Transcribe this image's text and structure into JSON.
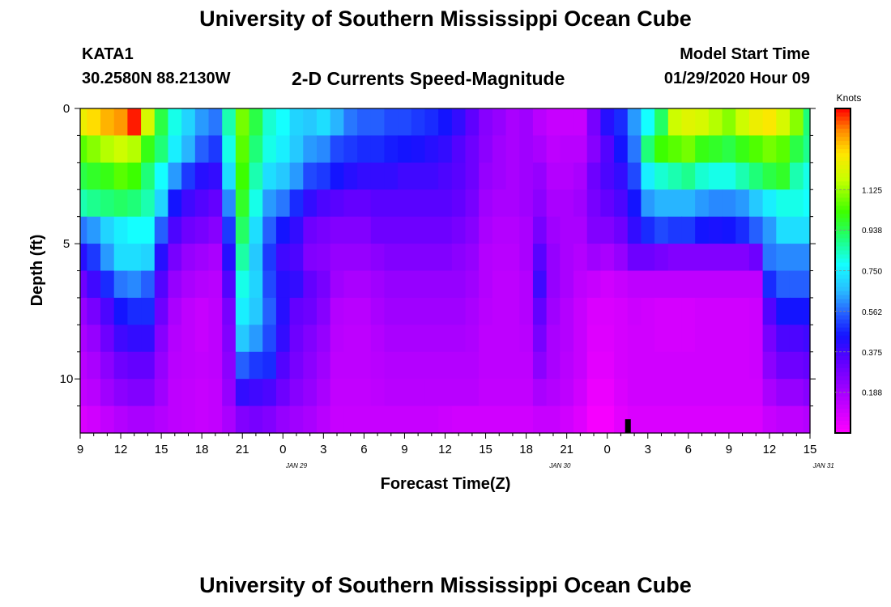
{
  "header": {
    "title": "University of Southern Mississippi Ocean Cube",
    "station": "KATA1",
    "coordinates": "30.2580N 88.2130W",
    "subtitle": "2-D Currents Speed-Magnitude",
    "model_start_label": "Model Start Time",
    "model_start_value": "01/29/2020 Hour 09"
  },
  "footer": {
    "title": "University of Southern Mississippi Ocean Cube"
  },
  "chart_data": {
    "type": "heatmap",
    "title": "2-D Currents Speed-Magnitude",
    "xlabel": "Forecast Time(Z)",
    "ylabel": "Depth (ft)",
    "x_tick_labels": [
      "9",
      "12",
      "15",
      "18",
      "21",
      "0",
      "3",
      "6",
      "9",
      "12",
      "15",
      "18",
      "21",
      "0",
      "3",
      "6",
      "9",
      "12",
      "15"
    ],
    "date_labels": [
      {
        "text": "JAN 29",
        "x_hour": 16
      },
      {
        "text": "JAN 30",
        "x_hour": 35.5
      },
      {
        "text": "JAN 31",
        "x_hour": 55
      }
    ],
    "xlim_hours_since_start": [
      0,
      54
    ],
    "y_tick_labels": [
      "0",
      "5",
      "10"
    ],
    "ylim": [
      0,
      12
    ],
    "y_tick_values": [
      0,
      5,
      10
    ],
    "colorbar": {
      "unit_label": "Knots",
      "tick_labels": [
        "1.125",
        "0.938",
        "0.750",
        "0.562",
        "0.375",
        "0.188"
      ],
      "tick_values": [
        1.125,
        0.938,
        0.75,
        0.562,
        0.375,
        0.188
      ],
      "range": [
        0,
        1.5
      ]
    },
    "current_time_marker_hours": 40.5,
    "grid_depths_ft": [
      0.5,
      1.5,
      2.5,
      3.5,
      4.5,
      5.5,
      6.5,
      7.5,
      8.5,
      9.5,
      10.5,
      11.5
    ],
    "grid_hours": [
      0,
      1,
      2,
      3,
      4,
      5,
      6,
      7,
      8,
      9,
      10,
      11,
      12,
      13,
      14,
      15,
      16,
      17,
      18,
      19,
      20,
      21,
      22,
      23,
      24,
      25,
      26,
      27,
      28,
      29,
      30,
      31,
      32,
      33,
      34,
      35,
      36,
      37,
      38,
      39,
      40,
      41,
      42,
      43,
      44,
      45,
      46,
      47,
      48,
      49,
      50,
      51,
      52,
      53,
      54
    ],
    "values": [
      [
        1.25,
        1.3,
        1.35,
        1.38,
        1.48,
        1.2,
        0.95,
        0.8,
        0.7,
        0.62,
        0.58,
        0.85,
        1.08,
        0.95,
        0.82,
        0.78,
        0.7,
        0.68,
        0.72,
        0.65,
        0.58,
        0.55,
        0.55,
        0.52,
        0.52,
        0.5,
        0.48,
        0.45,
        0.4,
        0.33,
        0.25,
        0.22,
        0.18,
        0.2,
        0.15,
        0.12,
        0.12,
        0.12,
        0.28,
        0.42,
        0.48,
        0.62,
        0.78,
        0.92,
        1.18,
        1.22,
        1.2,
        1.15,
        1.1,
        1.18,
        1.25,
        1.28,
        1.2,
        1.1,
        0.9
      ],
      [
        1.05,
        1.1,
        1.15,
        1.18,
        1.15,
        1.0,
        0.9,
        0.75,
        0.65,
        0.55,
        0.5,
        0.8,
        1.05,
        0.9,
        0.8,
        0.75,
        0.68,
        0.62,
        0.6,
        0.52,
        0.5,
        0.48,
        0.48,
        0.46,
        0.45,
        0.44,
        0.42,
        0.4,
        0.35,
        0.3,
        0.24,
        0.2,
        0.18,
        0.2,
        0.18,
        0.14,
        0.15,
        0.15,
        0.25,
        0.35,
        0.45,
        0.58,
        0.9,
        1.02,
        1.05,
        1.08,
        1.0,
        0.98,
        0.95,
        1.0,
        1.04,
        1.08,
        1.05,
        0.95,
        0.88
      ],
      [
        0.95,
        0.98,
        1.0,
        1.05,
        1.02,
        0.9,
        0.78,
        0.62,
        0.5,
        0.42,
        0.4,
        0.72,
        1.02,
        0.85,
        0.72,
        0.68,
        0.62,
        0.52,
        0.5,
        0.45,
        0.42,
        0.4,
        0.4,
        0.4,
        0.38,
        0.38,
        0.38,
        0.36,
        0.34,
        0.3,
        0.22,
        0.2,
        0.18,
        0.2,
        0.22,
        0.16,
        0.16,
        0.18,
        0.3,
        0.36,
        0.4,
        0.52,
        0.75,
        0.82,
        0.85,
        0.88,
        0.82,
        0.8,
        0.8,
        0.85,
        0.9,
        0.95,
        0.98,
        0.85,
        0.8
      ],
      [
        0.85,
        0.88,
        0.9,
        0.92,
        0.9,
        0.85,
        0.7,
        0.45,
        0.38,
        0.35,
        0.32,
        0.6,
        0.98,
        0.8,
        0.62,
        0.58,
        0.48,
        0.4,
        0.36,
        0.34,
        0.32,
        0.32,
        0.34,
        0.34,
        0.34,
        0.34,
        0.34,
        0.34,
        0.32,
        0.28,
        0.2,
        0.18,
        0.18,
        0.2,
        0.24,
        0.18,
        0.18,
        0.2,
        0.28,
        0.32,
        0.36,
        0.45,
        0.62,
        0.65,
        0.65,
        0.65,
        0.62,
        0.6,
        0.6,
        0.62,
        0.68,
        0.75,
        0.8,
        0.8,
        0.78
      ],
      [
        0.58,
        0.62,
        0.7,
        0.75,
        0.78,
        0.78,
        0.55,
        0.36,
        0.3,
        0.28,
        0.25,
        0.5,
        0.92,
        0.72,
        0.55,
        0.45,
        0.4,
        0.3,
        0.28,
        0.26,
        0.26,
        0.26,
        0.3,
        0.3,
        0.3,
        0.3,
        0.3,
        0.3,
        0.28,
        0.25,
        0.18,
        0.16,
        0.16,
        0.18,
        0.28,
        0.2,
        0.18,
        0.18,
        0.26,
        0.26,
        0.3,
        0.4,
        0.48,
        0.52,
        0.5,
        0.5,
        0.45,
        0.44,
        0.45,
        0.48,
        0.55,
        0.62,
        0.72,
        0.72,
        0.72
      ],
      [
        0.42,
        0.5,
        0.62,
        0.72,
        0.72,
        0.7,
        0.42,
        0.28,
        0.22,
        0.2,
        0.18,
        0.42,
        0.86,
        0.68,
        0.5,
        0.38,
        0.36,
        0.26,
        0.25,
        0.22,
        0.22,
        0.22,
        0.24,
        0.26,
        0.26,
        0.26,
        0.26,
        0.26,
        0.24,
        0.22,
        0.16,
        0.15,
        0.15,
        0.18,
        0.34,
        0.22,
        0.18,
        0.16,
        0.2,
        0.18,
        0.22,
        0.3,
        0.3,
        0.28,
        0.26,
        0.26,
        0.26,
        0.26,
        0.26,
        0.26,
        0.3,
        0.58,
        0.6,
        0.6,
        0.6
      ],
      [
        0.3,
        0.38,
        0.48,
        0.58,
        0.6,
        0.55,
        0.35,
        0.22,
        0.18,
        0.16,
        0.15,
        0.35,
        0.8,
        0.7,
        0.52,
        0.42,
        0.4,
        0.32,
        0.28,
        0.2,
        0.18,
        0.18,
        0.2,
        0.22,
        0.22,
        0.22,
        0.22,
        0.22,
        0.22,
        0.2,
        0.16,
        0.14,
        0.14,
        0.16,
        0.38,
        0.22,
        0.18,
        0.14,
        0.12,
        0.1,
        0.12,
        0.14,
        0.14,
        0.14,
        0.14,
        0.14,
        0.14,
        0.14,
        0.14,
        0.14,
        0.14,
        0.48,
        0.55,
        0.55,
        0.55
      ],
      [
        0.22,
        0.28,
        0.36,
        0.45,
        0.48,
        0.48,
        0.3,
        0.18,
        0.14,
        0.12,
        0.14,
        0.28,
        0.75,
        0.68,
        0.55,
        0.42,
        0.32,
        0.3,
        0.25,
        0.16,
        0.15,
        0.15,
        0.18,
        0.2,
        0.2,
        0.2,
        0.2,
        0.2,
        0.2,
        0.18,
        0.15,
        0.14,
        0.14,
        0.16,
        0.32,
        0.2,
        0.16,
        0.12,
        0.08,
        0.08,
        0.09,
        0.11,
        0.1,
        0.09,
        0.09,
        0.09,
        0.1,
        0.1,
        0.1,
        0.1,
        0.11,
        0.35,
        0.45,
        0.45,
        0.45
      ],
      [
        0.18,
        0.22,
        0.3,
        0.38,
        0.4,
        0.4,
        0.25,
        0.16,
        0.14,
        0.12,
        0.14,
        0.26,
        0.68,
        0.62,
        0.52,
        0.4,
        0.3,
        0.26,
        0.22,
        0.15,
        0.14,
        0.14,
        0.16,
        0.18,
        0.18,
        0.18,
        0.18,
        0.18,
        0.18,
        0.17,
        0.14,
        0.14,
        0.14,
        0.15,
        0.28,
        0.18,
        0.16,
        0.12,
        0.07,
        0.07,
        0.09,
        0.1,
        0.1,
        0.09,
        0.09,
        0.09,
        0.1,
        0.1,
        0.1,
        0.1,
        0.11,
        0.28,
        0.36,
        0.36,
        0.38
      ],
      [
        0.15,
        0.18,
        0.24,
        0.3,
        0.32,
        0.32,
        0.22,
        0.15,
        0.14,
        0.13,
        0.14,
        0.24,
        0.55,
        0.5,
        0.48,
        0.35,
        0.28,
        0.24,
        0.2,
        0.14,
        0.14,
        0.14,
        0.15,
        0.16,
        0.16,
        0.16,
        0.16,
        0.16,
        0.16,
        0.16,
        0.14,
        0.14,
        0.14,
        0.14,
        0.24,
        0.18,
        0.15,
        0.12,
        0.06,
        0.06,
        0.09,
        0.1,
        0.1,
        0.1,
        0.1,
        0.1,
        0.1,
        0.1,
        0.1,
        0.1,
        0.11,
        0.24,
        0.3,
        0.3,
        0.32
      ],
      [
        0.13,
        0.15,
        0.2,
        0.24,
        0.26,
        0.26,
        0.2,
        0.14,
        0.13,
        0.12,
        0.13,
        0.22,
        0.4,
        0.38,
        0.36,
        0.3,
        0.25,
        0.22,
        0.18,
        0.13,
        0.13,
        0.13,
        0.14,
        0.15,
        0.15,
        0.15,
        0.15,
        0.15,
        0.15,
        0.15,
        0.13,
        0.13,
        0.13,
        0.13,
        0.18,
        0.16,
        0.14,
        0.1,
        0.04,
        0.04,
        0.08,
        0.1,
        0.1,
        0.1,
        0.1,
        0.1,
        0.1,
        0.1,
        0.1,
        0.1,
        0.1,
        0.18,
        0.22,
        0.22,
        0.25
      ],
      [
        0.08,
        0.1,
        0.13,
        0.16,
        0.18,
        0.18,
        0.16,
        0.14,
        0.13,
        0.12,
        0.13,
        0.18,
        0.26,
        0.28,
        0.26,
        0.22,
        0.2,
        0.18,
        0.15,
        0.12,
        0.12,
        0.12,
        0.12,
        0.12,
        0.12,
        0.12,
        0.12,
        0.11,
        0.1,
        0.1,
        0.1,
        0.1,
        0.1,
        0.1,
        0.12,
        0.12,
        0.1,
        0.07,
        0.02,
        0.02,
        0.06,
        0.08,
        0.08,
        0.08,
        0.08,
        0.08,
        0.08,
        0.08,
        0.08,
        0.08,
        0.08,
        0.12,
        0.14,
        0.14,
        0.16
      ]
    ]
  }
}
